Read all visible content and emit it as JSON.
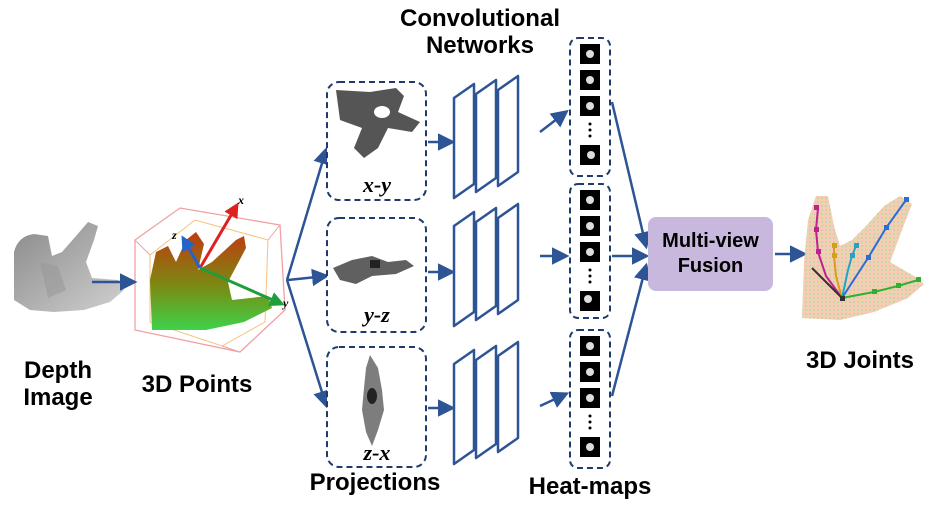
{
  "labels": {
    "depth_image": "Depth\nImage",
    "points_3d": "3D Points",
    "conv_networks": "Convolutional\nNetworks",
    "projections": "Projections",
    "heat_maps": "Heat-maps",
    "fusion": "Multi-view\nFusion",
    "joints_3d": "3D Joints"
  },
  "projection_views": [
    "x-y",
    "y-z",
    "z-x"
  ],
  "axes": [
    "x",
    "y",
    "z"
  ],
  "colors": {
    "arrow": "#2d5494",
    "box_border": "#1f3b6b",
    "fusion_fill": "#c9b8de",
    "axis_x": "#e02020",
    "axis_y": "#1f9e3c",
    "axis_z": "#2563c9"
  }
}
